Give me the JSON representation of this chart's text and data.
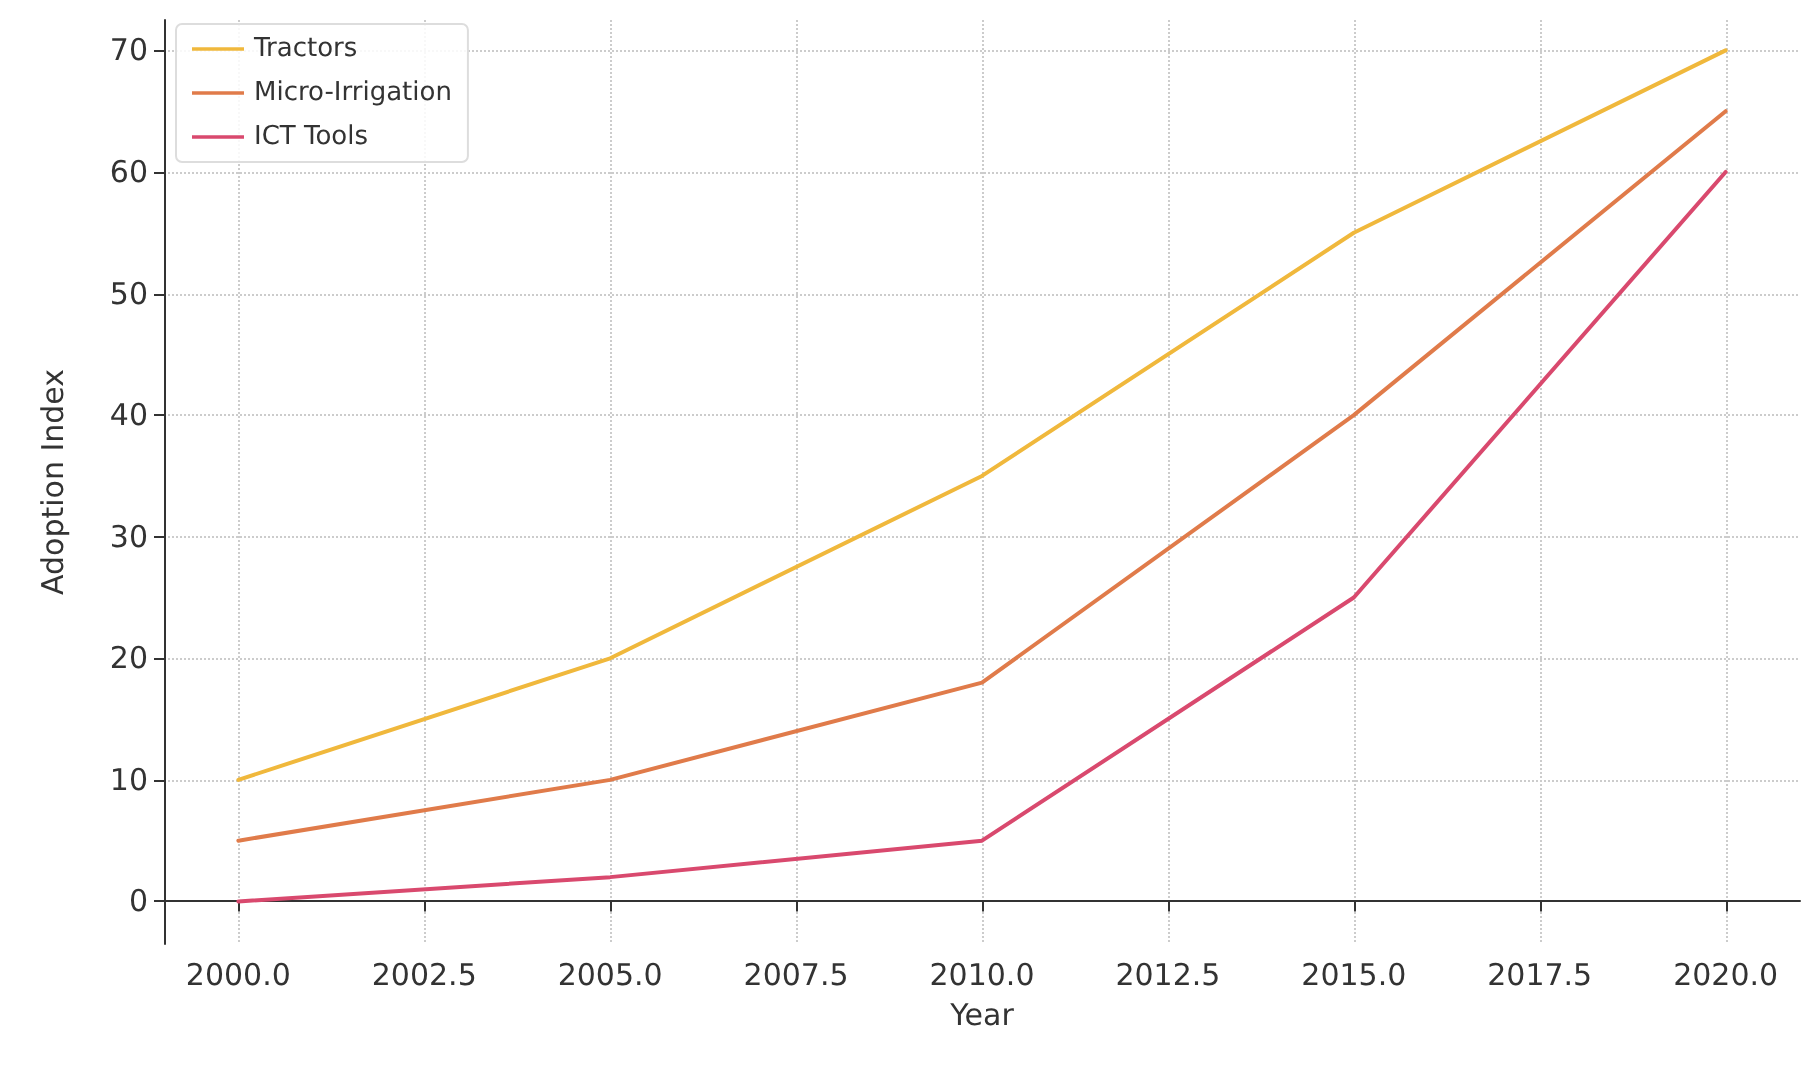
{
  "chart_data": {
    "type": "line",
    "xlabel": "Year",
    "ylabel": "Adoption Index",
    "x": [
      2000,
      2005,
      2010,
      2015,
      2020
    ],
    "series": [
      {
        "name": "Tractors",
        "color": "#f0b83c",
        "values": [
          10,
          20,
          35,
          55,
          70
        ]
      },
      {
        "name": "Micro-Irrigation",
        "color": "#e07b4a",
        "values": [
          5,
          10,
          18,
          40,
          65
        ]
      },
      {
        "name": "ICT Tools",
        "color": "#d9496e",
        "values": [
          0,
          2,
          5,
          25,
          60
        ]
      }
    ],
    "xlim": [
      1999,
      2021
    ],
    "xticks": [
      {
        "value": 2000,
        "label": "2000.0"
      },
      {
        "value": 2002.5,
        "label": "2002.5"
      },
      {
        "value": 2005,
        "label": "2005.0"
      },
      {
        "value": 2007.5,
        "label": "2007.5"
      },
      {
        "value": 2010,
        "label": "2010.0"
      },
      {
        "value": 2012.5,
        "label": "2012.5"
      },
      {
        "value": 2015,
        "label": "2015.0"
      },
      {
        "value": 2017.5,
        "label": "2017.5"
      },
      {
        "value": 2020,
        "label": "2020.0"
      }
    ],
    "ylim": [
      -3.5,
      72.5
    ],
    "yticks": [
      0,
      10,
      20,
      30,
      40,
      50,
      60,
      70
    ],
    "grid": true,
    "legend": "top left",
    "marker": "none",
    "line_style": "solid"
  }
}
